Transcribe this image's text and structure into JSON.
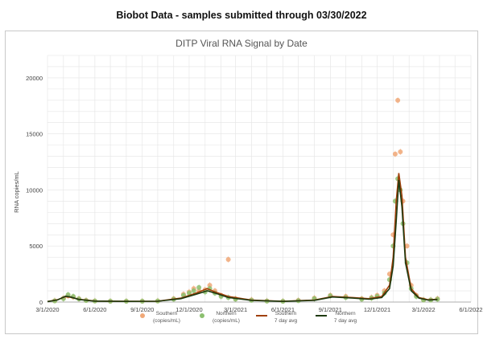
{
  "heading": "Biobot Data - samples submitted through 03/30/2022",
  "chart_data": {
    "type": "scatter",
    "title": "DITP Viral RNA Signal by Date",
    "xlabel": "",
    "ylabel": "RNA copies/mL",
    "ylim": [
      0,
      22000
    ],
    "xlim": [
      "2020-03-01",
      "2022-06-01"
    ],
    "y_ticks": [
      0,
      5000,
      10000,
      15000,
      20000
    ],
    "x_ticks": [
      "3/1/2020",
      "6/1/2020",
      "9/1/2020",
      "12/1/2020",
      "3/1/2021",
      "6/1/2021",
      "9/1/2021",
      "12/1/2021",
      "3/1/2022",
      "6/1/2022"
    ],
    "grid": true,
    "legend_position": "bottom",
    "colors": {
      "southern_points": "#f0a878",
      "northern_points": "#8cc070",
      "southern_avg": "#a0400a",
      "northern_avg": "#1f3a10"
    },
    "series": [
      {
        "name": "Southern (copies/mL)",
        "kind": "points",
        "x": [
          "2020-03-15",
          "2020-04-01",
          "2020-04-10",
          "2020-04-20",
          "2020-05-01",
          "2020-05-15",
          "2020-06-01",
          "2020-07-01",
          "2020-08-01",
          "2020-09-01",
          "2020-10-01",
          "2020-11-01",
          "2020-11-20",
          "2020-12-01",
          "2020-12-10",
          "2020-12-20",
          "2021-01-01",
          "2021-01-10",
          "2021-01-20",
          "2021-02-01",
          "2021-02-15",
          "2021-03-01",
          "2021-04-01",
          "2021-05-01",
          "2021-06-01",
          "2021-07-01",
          "2021-08-01",
          "2021-09-01",
          "2021-10-01",
          "2021-11-01",
          "2021-11-20",
          "2021-12-01",
          "2021-12-15",
          "2021-12-25",
          "2022-01-01",
          "2022-01-05",
          "2022-01-10",
          "2022-01-15",
          "2022-01-20",
          "2022-01-28",
          "2022-02-05",
          "2022-02-15",
          "2022-03-01",
          "2022-03-15",
          "2022-03-28"
        ],
        "y": [
          120,
          350,
          550,
          450,
          300,
          150,
          100,
          80,
          80,
          80,
          100,
          300,
          700,
          900,
          1200,
          1000,
          1100,
          1500,
          1000,
          600,
          3800,
          300,
          200,
          100,
          80,
          150,
          350,
          600,
          500,
          300,
          400,
          600,
          1000,
          2500,
          6000,
          13200,
          18000,
          13400,
          9000,
          5000,
          1500,
          600,
          200,
          200,
          300
        ]
      },
      {
        "name": "Northern (copies/mL)",
        "kind": "points",
        "x": [
          "2020-03-15",
          "2020-04-01",
          "2020-04-10",
          "2020-04-20",
          "2020-05-01",
          "2020-05-15",
          "2020-06-01",
          "2020-07-01",
          "2020-08-01",
          "2020-09-01",
          "2020-10-01",
          "2020-11-01",
          "2020-11-20",
          "2020-12-01",
          "2020-12-10",
          "2020-12-20",
          "2021-01-01",
          "2021-01-10",
          "2021-01-20",
          "2021-02-01",
          "2021-02-15",
          "2021-03-01",
          "2021-04-01",
          "2021-05-01",
          "2021-06-01",
          "2021-07-01",
          "2021-08-01",
          "2021-09-01",
          "2021-10-01",
          "2021-11-01",
          "2021-11-20",
          "2021-12-01",
          "2021-12-15",
          "2021-12-25",
          "2022-01-01",
          "2022-01-05",
          "2022-01-10",
          "2022-01-15",
          "2022-01-20",
          "2022-01-28",
          "2022-02-05",
          "2022-02-15",
          "2022-03-01",
          "2022-03-15",
          "2022-03-28"
        ],
        "y": [
          100,
          300,
          650,
          500,
          280,
          130,
          90,
          70,
          70,
          70,
          90,
          250,
          600,
          800,
          1000,
          1300,
          900,
          1200,
          800,
          500,
          400,
          250,
          150,
          80,
          60,
          120,
          300,
          550,
          400,
          250,
          350,
          500,
          800,
          2000,
          5000,
          9000,
          11000,
          10000,
          7000,
          3500,
          1200,
          500,
          180,
          180,
          250
        ]
      },
      {
        "name": "Southern 7 day avg",
        "kind": "line",
        "x": [
          "2020-03-01",
          "2020-03-20",
          "2020-04-05",
          "2020-04-15",
          "2020-05-01",
          "2020-06-01",
          "2020-08-01",
          "2020-10-01",
          "2020-11-15",
          "2020-12-15",
          "2021-01-05",
          "2021-01-20",
          "2021-02-15",
          "2021-04-01",
          "2021-06-01",
          "2021-08-01",
          "2021-09-05",
          "2021-10-15",
          "2021-11-15",
          "2021-12-10",
          "2021-12-25",
          "2022-01-01",
          "2022-01-07",
          "2022-01-12",
          "2022-01-18",
          "2022-01-25",
          "2022-02-05",
          "2022-02-20",
          "2022-03-10",
          "2022-03-28"
        ],
        "y": [
          50,
          200,
          480,
          420,
          250,
          90,
          70,
          80,
          350,
          800,
          1200,
          900,
          500,
          180,
          70,
          180,
          500,
          400,
          300,
          500,
          1500,
          4000,
          9000,
          11500,
          9500,
          4000,
          1200,
          400,
          200,
          250
        ]
      },
      {
        "name": "Northern 7 day avg",
        "kind": "line",
        "x": [
          "2020-03-01",
          "2020-03-20",
          "2020-04-05",
          "2020-04-15",
          "2020-05-01",
          "2020-06-01",
          "2020-08-01",
          "2020-10-01",
          "2020-11-15",
          "2020-12-15",
          "2021-01-05",
          "2021-01-20",
          "2021-02-15",
          "2021-04-01",
          "2021-06-01",
          "2021-08-01",
          "2021-09-05",
          "2021-10-15",
          "2021-11-15",
          "2021-12-10",
          "2021-12-25",
          "2022-01-01",
          "2022-01-07",
          "2022-01-12",
          "2022-01-18",
          "2022-01-25",
          "2022-02-05",
          "2022-02-20",
          "2022-03-10",
          "2022-03-28"
        ],
        "y": [
          40,
          180,
          520,
          450,
          230,
          80,
          60,
          70,
          300,
          700,
          1000,
          800,
          400,
          150,
          60,
          150,
          450,
          350,
          250,
          400,
          1200,
          3200,
          7200,
          10900,
          8500,
          3500,
          1000,
          350,
          170,
          220
        ]
      }
    ],
    "legend": [
      {
        "line1": "Southern",
        "line2": "(copies/mL)"
      },
      {
        "line1": "Northern",
        "line2": "(copies/mL)"
      },
      {
        "line1": "Southern",
        "line2": "7 day avg"
      },
      {
        "line1": "Northern",
        "line2": "7 day avg"
      }
    ]
  }
}
